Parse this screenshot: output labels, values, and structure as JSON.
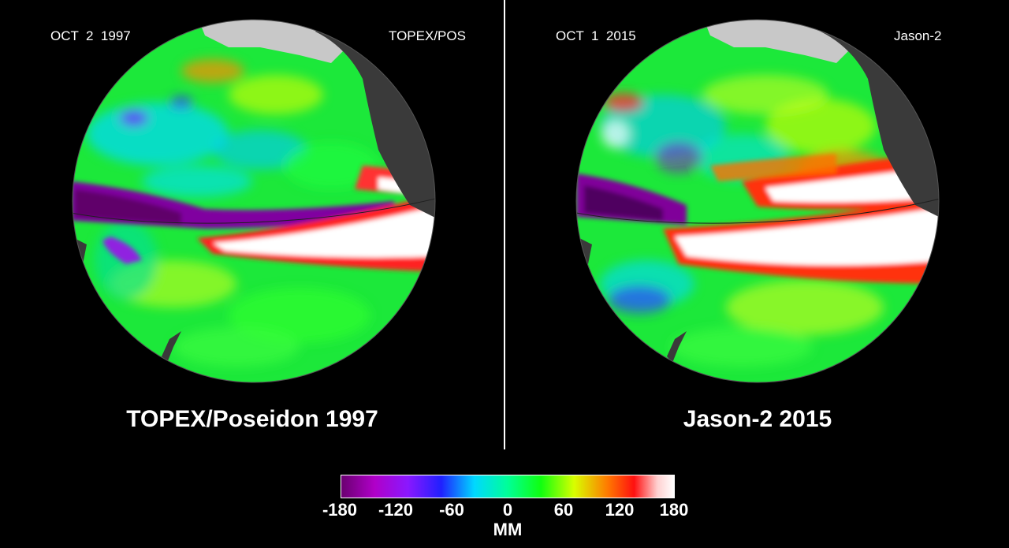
{
  "panels": [
    {
      "date": "OCT  2  1997",
      "satellite_short": "TOPEX/POS",
      "caption": "TOPEX/Poseidon 1997"
    },
    {
      "date": "OCT  1  2015",
      "satellite_short": "Jason-2",
      "caption": "Jason-2 2015"
    }
  ],
  "colorbar": {
    "ticks": [
      "-180",
      "-120",
      "-60",
      "0",
      "60",
      "120",
      "180"
    ],
    "unit": "MM",
    "min": -180,
    "max": 180
  },
  "colors": {
    "land": "#3a3a3a",
    "ice": "#c8c8c8",
    "background": "#000000",
    "ocean_base": "#18e838"
  }
}
